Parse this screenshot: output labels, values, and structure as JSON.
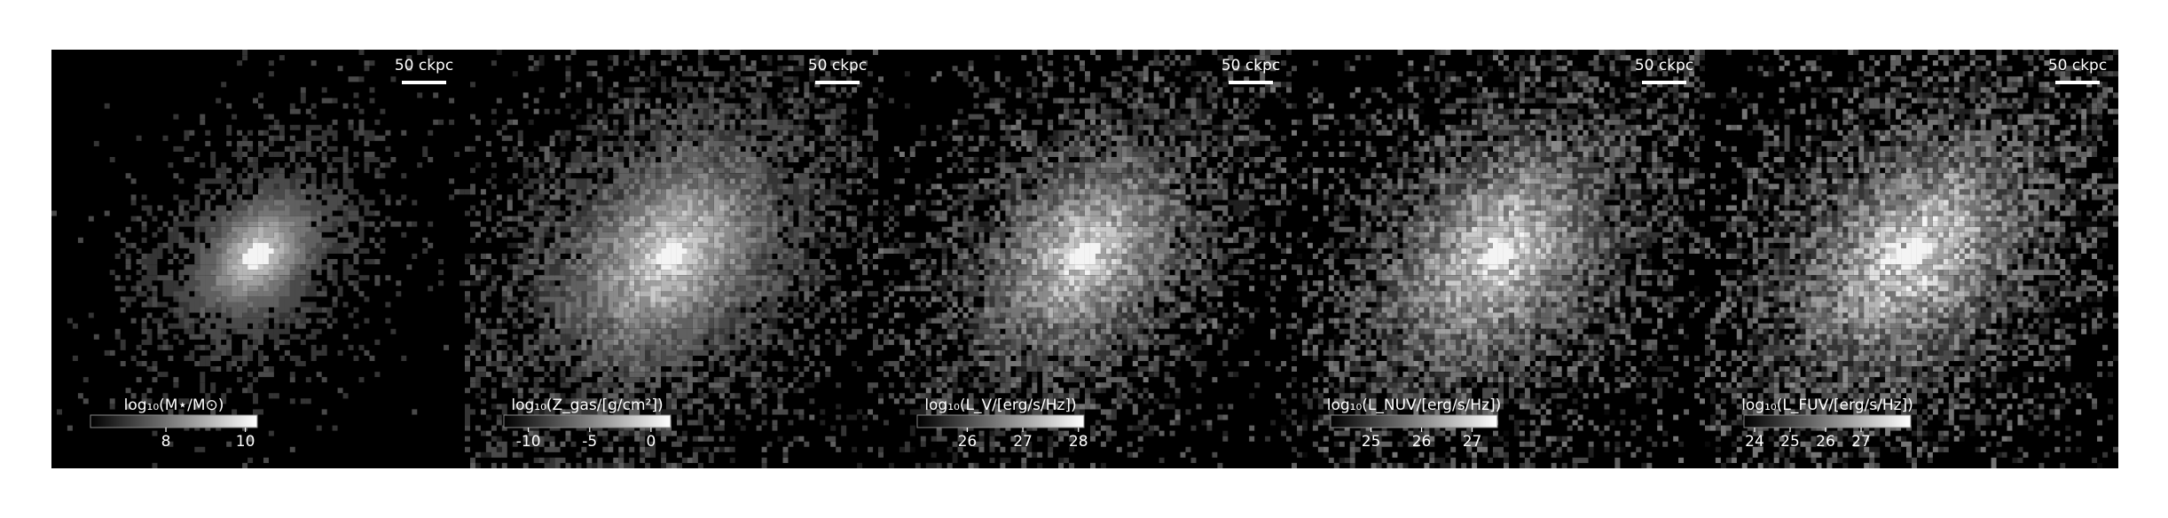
{
  "panels": [
    {
      "scale_bar": "50 ckpc",
      "colorbar": {
        "label": "log₁₀(M⋆/M⊙)",
        "lim": [
          6.1,
          10.3
        ],
        "ticks": [
          8,
          10
        ]
      }
    },
    {
      "scale_bar": "50 ckpc",
      "colorbar": {
        "label": "log₁₀(Z_gas/[g/cm²])",
        "lim": [
          -12,
          1.6
        ],
        "ticks": [
          -10,
          -5,
          0
        ]
      }
    },
    {
      "scale_bar": "50 ckpc",
      "colorbar": {
        "label": "log₁₀(L_V/[erg/s/Hz])",
        "lim": [
          25.1,
          28.1
        ],
        "ticks": [
          26,
          27,
          28
        ]
      }
    },
    {
      "scale_bar": "50 ckpc",
      "colorbar": {
        "label": "log₁₀(L_NUV/[erg/s/Hz])",
        "lim": [
          24.2,
          27.5
        ],
        "ticks": [
          25,
          26,
          27
        ]
      }
    },
    {
      "scale_bar": "50 ckpc",
      "colorbar": {
        "label": "log₁₀(L_FUV/[erg/s/Hz])",
        "lim": [
          23.7,
          28.4
        ],
        "ticks": [
          24,
          25,
          26,
          27
        ]
      }
    }
  ]
}
